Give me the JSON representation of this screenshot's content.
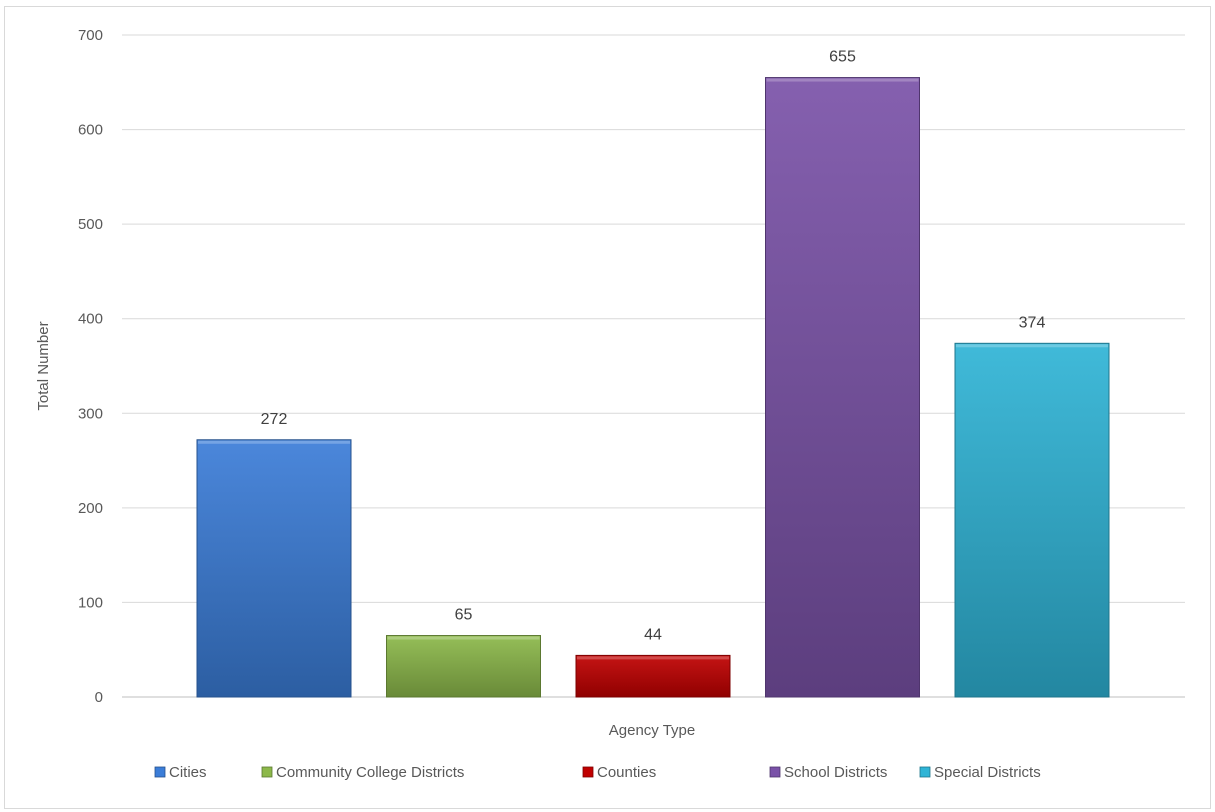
{
  "chart_data": {
    "type": "bar",
    "title": "",
    "xlabel": "Agency Type",
    "ylabel": "Total Number",
    "ylim": [
      0,
      700
    ],
    "yticks": [
      0,
      100,
      200,
      300,
      400,
      500,
      600,
      700
    ],
    "grid": true,
    "legend_position": "bottom",
    "categories": [
      "Cities",
      "Community College Districts",
      "Counties",
      "School Districts",
      "Special Districts"
    ],
    "values": [
      272,
      65,
      44,
      655,
      374
    ],
    "colors": [
      "#3b7dd8",
      "#8cb84a",
      "#c00000",
      "#7a52a8",
      "#2fb4d6"
    ]
  }
}
